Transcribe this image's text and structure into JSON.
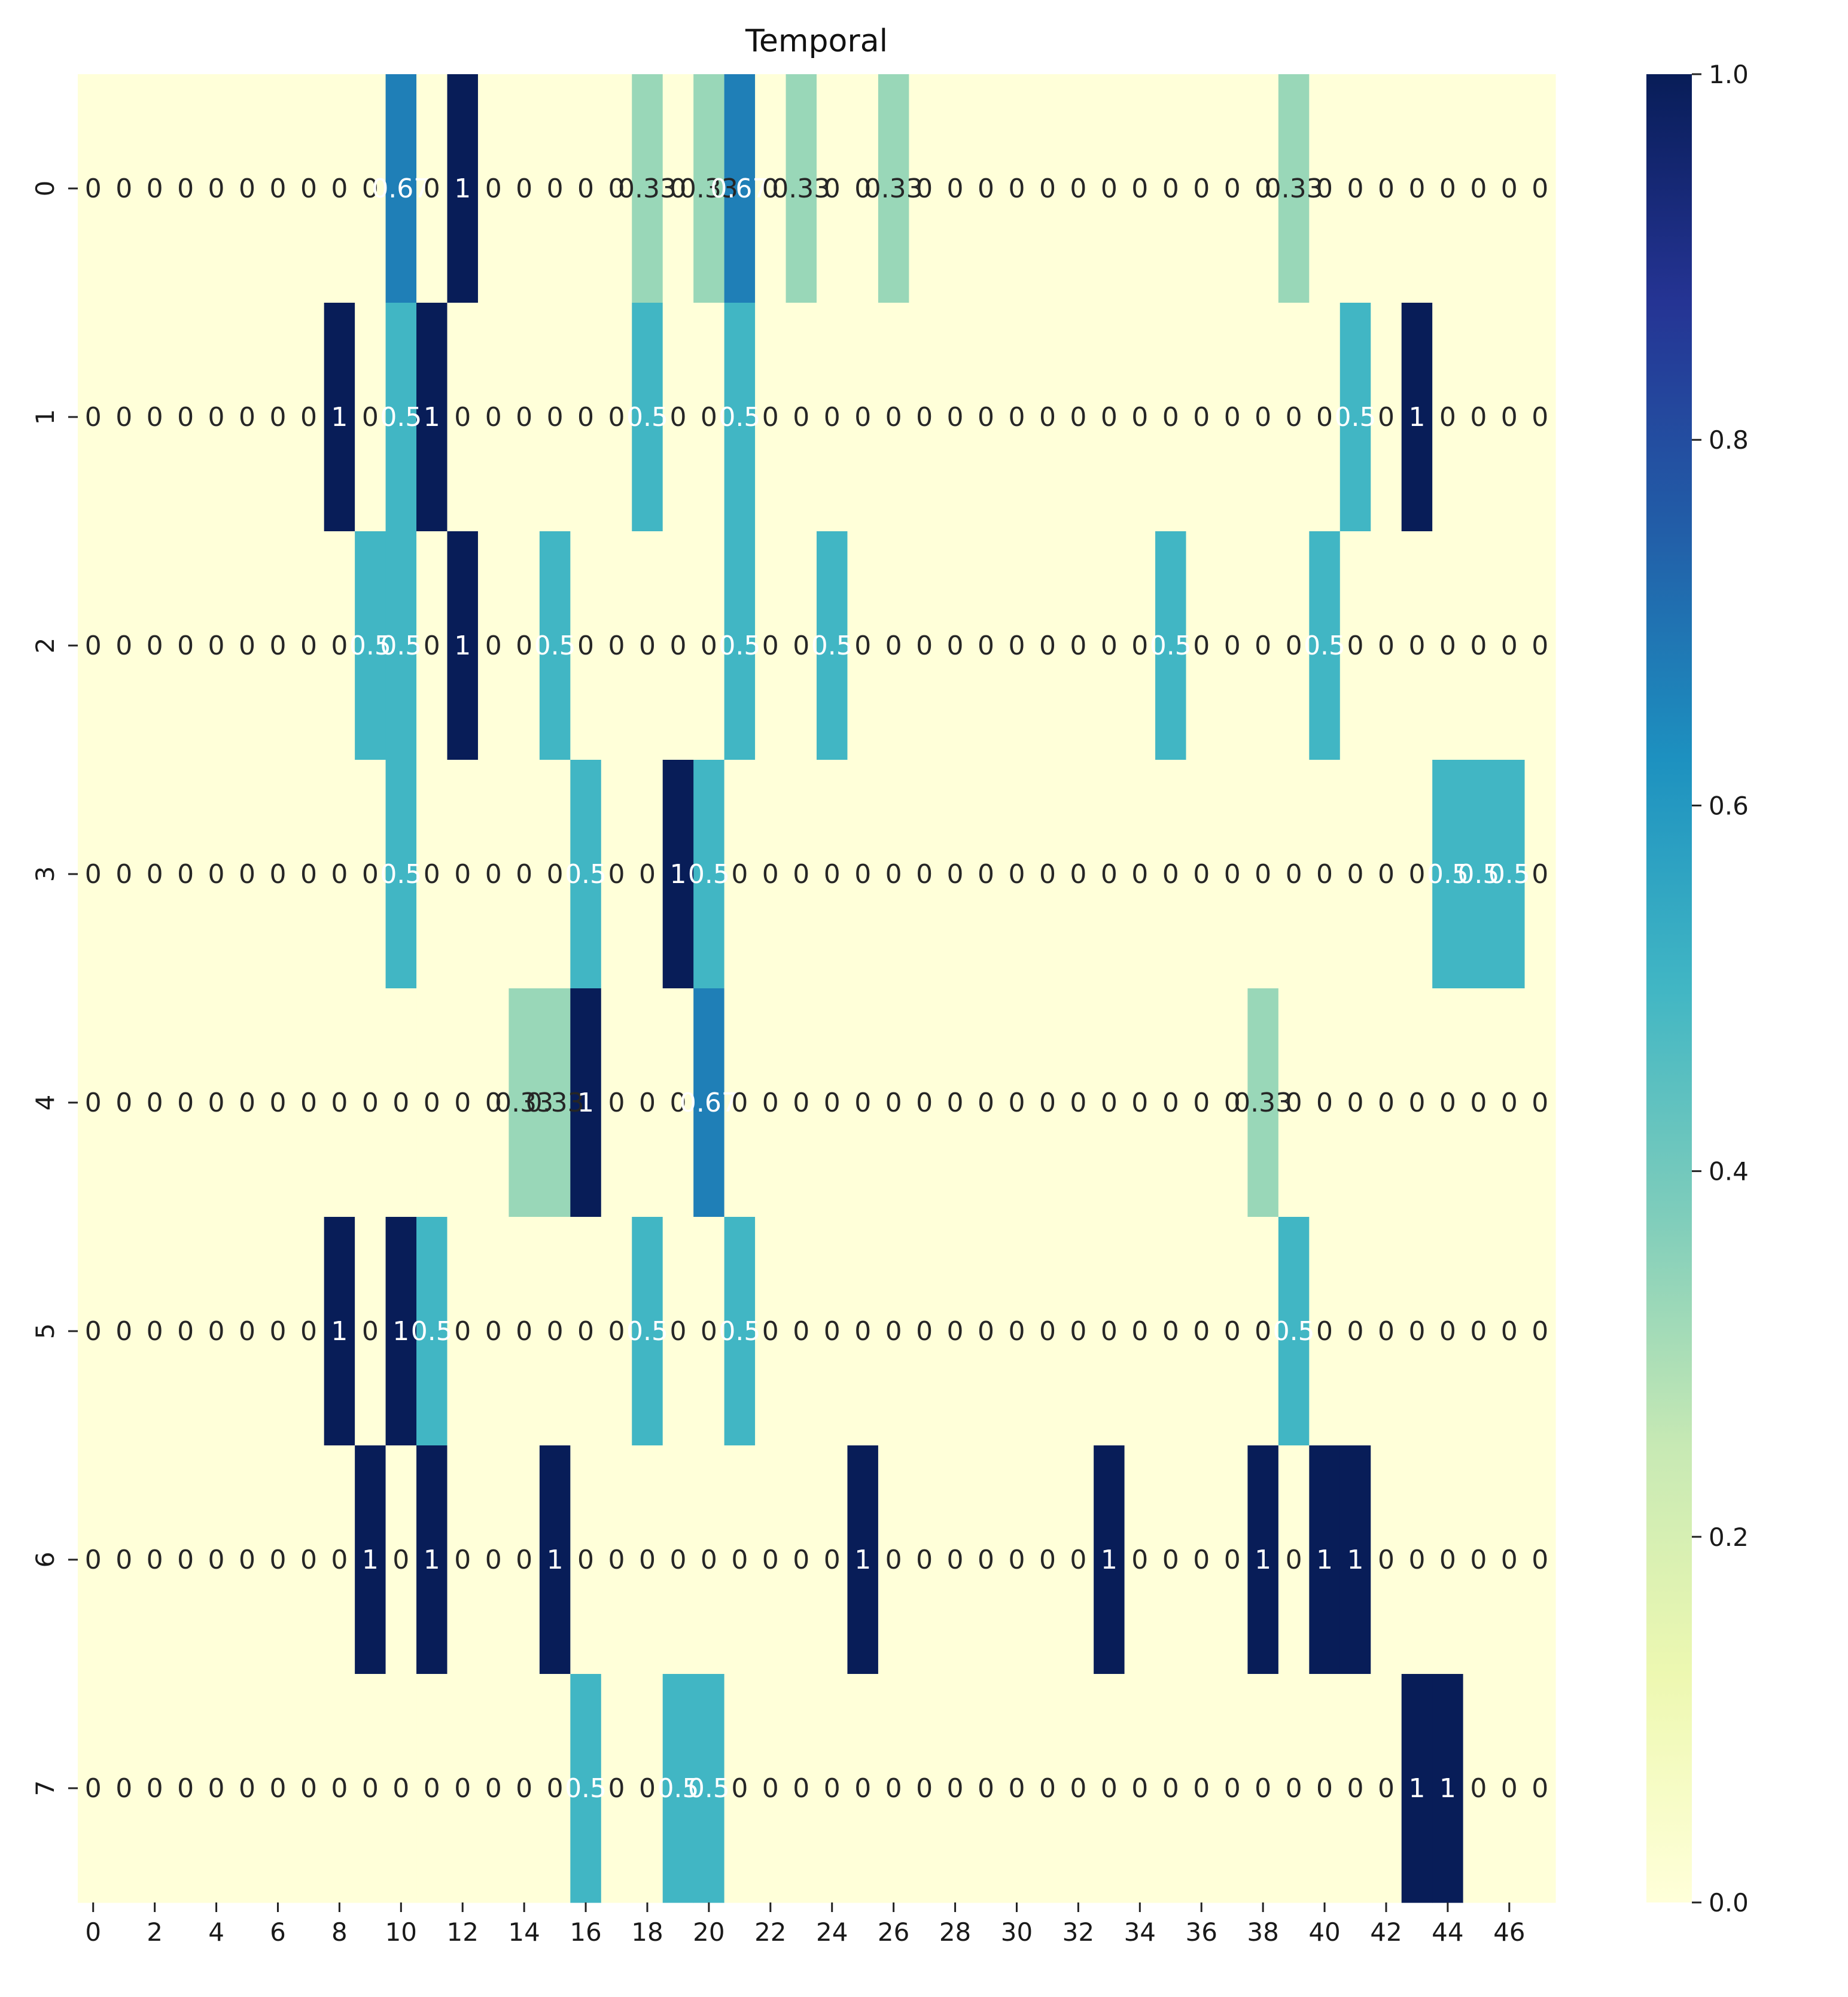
{
  "chart_data": {
    "type": "heatmap",
    "title": "Temporal",
    "xlabel": "",
    "ylabel": "",
    "colormap": "YlGnBu",
    "vmin": 0,
    "vmax": 1,
    "x_tick_labels": [
      "0",
      "2",
      "4",
      "6",
      "8",
      "10",
      "12",
      "14",
      "16",
      "18",
      "20",
      "22",
      "24",
      "26",
      "28",
      "30",
      "32",
      "34",
      "36",
      "38",
      "40",
      "42",
      "44",
      "46"
    ],
    "x_tick_indices": [
      0,
      2,
      4,
      6,
      8,
      10,
      12,
      14,
      16,
      18,
      20,
      22,
      24,
      26,
      28,
      30,
      32,
      34,
      36,
      38,
      40,
      42,
      44,
      46
    ],
    "y_tick_labels": [
      "0",
      "1",
      "2",
      "3",
      "4",
      "5",
      "6",
      "7"
    ],
    "colorbar_ticks": [
      "0.0",
      "0.2",
      "0.4",
      "0.6",
      "0.8",
      "1.0"
    ],
    "colorbar_tick_values": [
      0,
      0.2,
      0.4,
      0.6,
      0.8,
      1.0
    ],
    "n_cols": 48,
    "n_rows": 8,
    "rows": [
      {
        "cells": {
          "10": 0.67,
          "12": 1,
          "18": 0.33,
          "20": 0.33,
          "21": 0.67,
          "23": 0.33,
          "26": 0.33,
          "39": 0.33
        },
        "labels": {
          "10": "0.67",
          "20": "0.33",
          "21": "0.67"
        }
      },
      {
        "cells": {
          "8": 1,
          "10": 0.5,
          "11": 1,
          "18": 0.5,
          "21": 0.5,
          "41": 0.5,
          "43": 1
        },
        "labels": {}
      },
      {
        "cells": {
          "9": 0.5,
          "10": 0.5,
          "12": 1,
          "15": 0.5,
          "21": 0.5,
          "24": 0.5,
          "35": 0.5,
          "40": 0.5
        },
        "labels": {}
      },
      {
        "cells": {
          "10": 0.5,
          "16": 0.5,
          "19": 1,
          "20": 0.5,
          "44": 0.5,
          "45": 0.5,
          "46": 0.5
        },
        "labels": {}
      },
      {
        "cells": {
          "14": 0.33,
          "15": 0.33,
          "16": 1,
          "20": 0.67,
          "38": 0.33
        },
        "labels": {
          "20": "0.67"
        }
      },
      {
        "cells": {
          "8": 1,
          "10": 1,
          "11": 0.5,
          "18": 0.5,
          "21": 0.5,
          "39": 0.5
        },
        "labels": {}
      },
      {
        "cells": {
          "9": 1,
          "11": 1,
          "15": 1,
          "25": 1,
          "33": 1,
          "38": 1,
          "40": 1,
          "41": 1
        },
        "labels": {}
      },
      {
        "cells": {
          "16": 0.5,
          "19": 0.5,
          "20": 0.5,
          "43": 1,
          "44": 1
        },
        "labels": {}
      }
    ]
  }
}
